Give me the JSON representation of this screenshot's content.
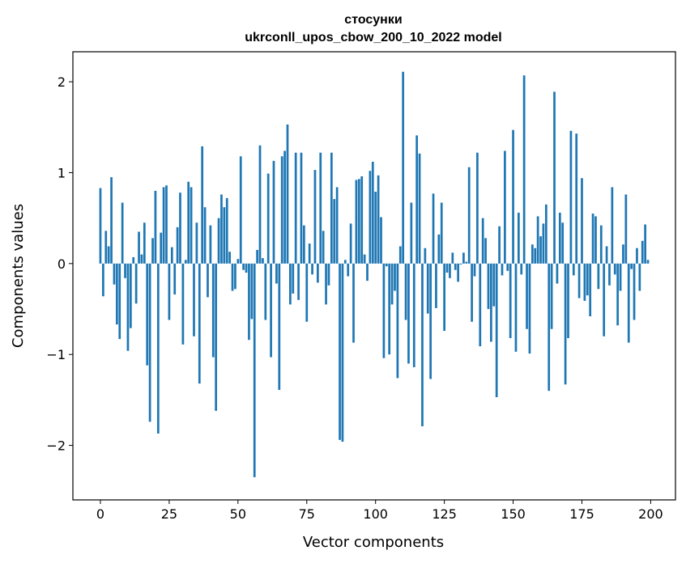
{
  "chart_data": {
    "type": "bar",
    "title_line1": "стосунки",
    "title_line2": "ukrconll_upos_cbow_200_10_2022 model",
    "xlabel": "Vector components",
    "ylabel": "Components values",
    "xlim": [
      -10,
      209
    ],
    "ylim": [
      -2.6,
      2.33
    ],
    "xticks": [
      0,
      25,
      50,
      75,
      100,
      125,
      150,
      175,
      200
    ],
    "xtick_labels": [
      "0",
      "25",
      "50",
      "75",
      "100",
      "125",
      "150",
      "175",
      "200"
    ],
    "yticks": [
      -2,
      -1,
      0,
      1,
      2
    ],
    "ytick_labels": [
      "−2",
      "−1",
      "0",
      "1",
      "2"
    ],
    "grid": false,
    "bar_color": "#1f77b4",
    "x": [
      0,
      1,
      2,
      3,
      4,
      5,
      6,
      7,
      8,
      9,
      10,
      11,
      12,
      13,
      14,
      15,
      16,
      17,
      18,
      19,
      20,
      21,
      22,
      23,
      24,
      25,
      26,
      27,
      28,
      29,
      30,
      31,
      32,
      33,
      34,
      35,
      36,
      37,
      38,
      39,
      40,
      41,
      42,
      43,
      44,
      45,
      46,
      47,
      48,
      49,
      50,
      51,
      52,
      53,
      54,
      55,
      56,
      57,
      58,
      59,
      60,
      61,
      62,
      63,
      64,
      65,
      66,
      67,
      68,
      69,
      70,
      71,
      72,
      73,
      74,
      75,
      76,
      77,
      78,
      79,
      80,
      81,
      82,
      83,
      84,
      85,
      86,
      87,
      88,
      89,
      90,
      91,
      92,
      93,
      94,
      95,
      96,
      97,
      98,
      99,
      100,
      101,
      102,
      103,
      104,
      105,
      106,
      107,
      108,
      109,
      110,
      111,
      112,
      113,
      114,
      115,
      116,
      117,
      118,
      119,
      120,
      121,
      122,
      123,
      124,
      125,
      126,
      127,
      128,
      129,
      130,
      131,
      132,
      133,
      134,
      135,
      136,
      137,
      138,
      139,
      140,
      141,
      142,
      143,
      144,
      145,
      146,
      147,
      148,
      149,
      150,
      151,
      152,
      153,
      154,
      155,
      156,
      157,
      158,
      159,
      160,
      161,
      162,
      163,
      164,
      165,
      166,
      167,
      168,
      169,
      170,
      171,
      172,
      173,
      174,
      175,
      176,
      177,
      178,
      179,
      180,
      181,
      182,
      183,
      184,
      185,
      186,
      187,
      188,
      189,
      190,
      191,
      192,
      193,
      194,
      195,
      196,
      197,
      198,
      199
    ],
    "values": [
      0.83,
      -0.36,
      0.36,
      0.19,
      0.95,
      -0.23,
      -0.67,
      -0.83,
      0.67,
      -0.16,
      -0.96,
      -0.71,
      0.07,
      -0.44,
      0.35,
      0.1,
      0.45,
      -1.12,
      -1.74,
      0.28,
      0.8,
      -1.87,
      0.34,
      0.84,
      0.86,
      -0.62,
      0.18,
      -0.34,
      0.4,
      0.78,
      -0.89,
      0.04,
      0.9,
      0.84,
      -0.8,
      0.45,
      -1.32,
      1.29,
      0.62,
      -0.37,
      0.42,
      -1.03,
      -1.62,
      0.5,
      0.76,
      0.62,
      0.72,
      0.13,
      -0.3,
      -0.28,
      0.05,
      1.18,
      -0.07,
      -0.1,
      -0.84,
      -0.61,
      -2.35,
      0.15,
      1.3,
      0.06,
      -0.62,
      0.99,
      -1.03,
      1.13,
      -0.22,
      -1.39,
      1.18,
      1.24,
      1.53,
      -0.45,
      -0.33,
      1.22,
      -0.4,
      1.22,
      0.42,
      -0.64,
      0.22,
      -0.12,
      1.03,
      -0.21,
      1.22,
      0.36,
      -0.45,
      -0.24,
      1.22,
      0.71,
      0.84,
      -1.94,
      -1.96,
      0.04,
      -0.14,
      0.44,
      -0.87,
      0.92,
      0.93,
      0.96,
      0.1,
      -0.19,
      1.02,
      1.12,
      0.79,
      0.97,
      0.51,
      -1.04,
      -0.03,
      -1.0,
      -0.45,
      -0.3,
      -1.26,
      0.19,
      2.11,
      -0.62,
      -1.1,
      0.67,
      -1.14,
      1.41,
      1.21,
      -1.79,
      0.17,
      -0.55,
      -1.27,
      0.77,
      -0.49,
      0.32,
      0.67,
      -0.74,
      -0.1,
      -0.16,
      0.12,
      -0.07,
      -0.2,
      -0.01,
      0.12,
      0.02,
      1.06,
      -0.64,
      -0.14,
      1.22,
      -0.91,
      0.5,
      0.28,
      -0.5,
      -0.86,
      -0.47,
      -1.47,
      0.41,
      -0.13,
      1.24,
      -0.08,
      -0.82,
      1.47,
      -0.97,
      0.56,
      -0.12,
      2.07,
      -0.72,
      -0.99,
      0.21,
      0.17,
      0.52,
      0.3,
      0.44,
      0.65,
      -1.4,
      -0.72,
      1.89,
      -0.22,
      0.56,
      0.45,
      -1.33,
      -0.82,
      1.46,
      -0.13,
      1.43,
      -0.38,
      0.94,
      -0.41,
      -0.35,
      -0.58,
      0.55,
      0.52,
      -0.28,
      0.42,
      -0.8,
      0.19,
      -0.24,
      0.84,
      -0.12,
      -0.68,
      -0.3,
      0.21,
      0.76,
      -0.87,
      -0.06,
      -0.62,
      0.17,
      -0.3,
      0.25,
      0.43,
      0.04
    ]
  }
}
